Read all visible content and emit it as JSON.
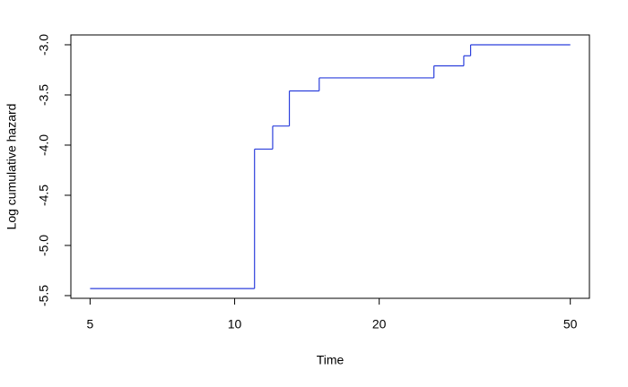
{
  "chart_data": {
    "type": "step",
    "xlabel": "Time",
    "ylabel": "Log cumulative hazard",
    "x": [
      5,
      11,
      12,
      13,
      15,
      26,
      30,
      31,
      50
    ],
    "series": [
      {
        "color": "#2b3fdc",
        "values": [
          -5.43,
          -4.04,
          -3.81,
          -3.46,
          -3.33,
          -3.21,
          -3.11,
          -3.0,
          -3.0
        ]
      }
    ],
    "xscale": "log",
    "xlim": [
      4.56,
      54.8
    ],
    "ylim": [
      -5.527,
      -2.902
    ],
    "xticks": [
      5,
      10,
      20,
      50
    ],
    "yticks": [
      {
        "value": -5.5,
        "label": "-5.5"
      },
      {
        "value": -5,
        "label": "-5.0"
      },
      -4.5,
      {
        "value": -4,
        "label": "-4.0"
      },
      -3.5,
      {
        "value": -3,
        "label": "-3.0"
      }
    ]
  }
}
